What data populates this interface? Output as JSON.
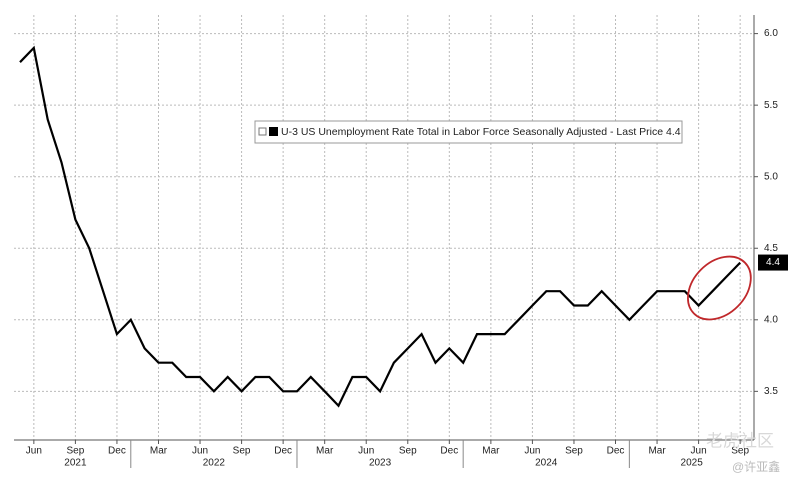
{
  "chart_data": {
    "type": "line",
    "x": [
      "2021-05",
      "2021-06",
      "2021-07",
      "2021-08",
      "2021-09",
      "2021-10",
      "2021-11",
      "2021-12",
      "2022-01",
      "2022-02",
      "2022-03",
      "2022-04",
      "2022-05",
      "2022-06",
      "2022-07",
      "2022-08",
      "2022-09",
      "2022-10",
      "2022-11",
      "2022-12",
      "2023-01",
      "2023-02",
      "2023-03",
      "2023-04",
      "2023-05",
      "2023-06",
      "2023-07",
      "2023-08",
      "2023-09",
      "2023-10",
      "2023-11",
      "2023-12",
      "2024-01",
      "2024-02",
      "2024-03",
      "2024-04",
      "2024-05",
      "2024-06",
      "2024-07",
      "2024-08",
      "2024-09",
      "2024-10",
      "2024-11",
      "2024-12",
      "2025-01",
      "2025-02",
      "2025-03",
      "2025-04",
      "2025-05",
      "2025-06",
      "2025-07",
      "2025-08",
      "2025-09"
    ],
    "series": [
      {
        "name": "U-3 US Unemployment Rate Total in Labor Force Seasonally Adjusted - Last Price 4.4",
        "color": "#000000",
        "values": [
          5.8,
          5.9,
          5.4,
          5.1,
          4.7,
          4.5,
          4.2,
          3.9,
          4.0,
          3.8,
          3.7,
          3.7,
          3.6,
          3.6,
          3.5,
          3.6,
          3.5,
          3.6,
          3.6,
          3.5,
          3.5,
          3.6,
          3.5,
          3.4,
          3.6,
          3.6,
          3.5,
          3.7,
          3.8,
          3.9,
          3.7,
          3.8,
          3.7,
          3.9,
          3.9,
          3.9,
          4.0,
          4.1,
          4.2,
          4.2,
          4.1,
          4.1,
          4.2,
          4.1,
          4.0,
          4.1,
          4.2,
          4.2,
          4.2,
          4.1,
          4.2,
          4.3,
          4.4
        ]
      }
    ],
    "xlim": [
      "2021-05",
      "2025-10"
    ],
    "xticks": [
      {
        "value": "2021-06",
        "label": "Jun"
      },
      {
        "value": "2021-09",
        "label": "Sep"
      },
      {
        "value": "2021-12",
        "label": "Dec"
      },
      {
        "value": "2022-03",
        "label": "Mar"
      },
      {
        "value": "2022-06",
        "label": "Jun"
      },
      {
        "value": "2022-09",
        "label": "Sep"
      },
      {
        "value": "2022-12",
        "label": "Dec"
      },
      {
        "value": "2023-03",
        "label": "Mar"
      },
      {
        "value": "2023-06",
        "label": "Jun"
      },
      {
        "value": "2023-09",
        "label": "Sep"
      },
      {
        "value": "2023-12",
        "label": "Dec"
      },
      {
        "value": "2024-03",
        "label": "Mar"
      },
      {
        "value": "2024-06",
        "label": "Jun"
      },
      {
        "value": "2024-09",
        "label": "Sep"
      },
      {
        "value": "2024-12",
        "label": "Dec"
      },
      {
        "value": "2025-03",
        "label": "Mar"
      },
      {
        "value": "2025-06",
        "label": "Jun"
      },
      {
        "value": "2025-09",
        "label": "Sep"
      }
    ],
    "years": [
      "2021",
      "2022",
      "2023",
      "2024",
      "2025"
    ],
    "ylim": [
      3.16,
      6.13
    ],
    "yticks": [
      3.5,
      {
        "value": 4,
        "label": "4.0"
      },
      4.5,
      {
        "value": 5,
        "label": "5.0"
      },
      5.5,
      {
        "value": 6,
        "label": "6.0"
      }
    ],
    "grid": true,
    "watermarks": [
      "老虎社区",
      "@许亚鑫"
    ]
  }
}
